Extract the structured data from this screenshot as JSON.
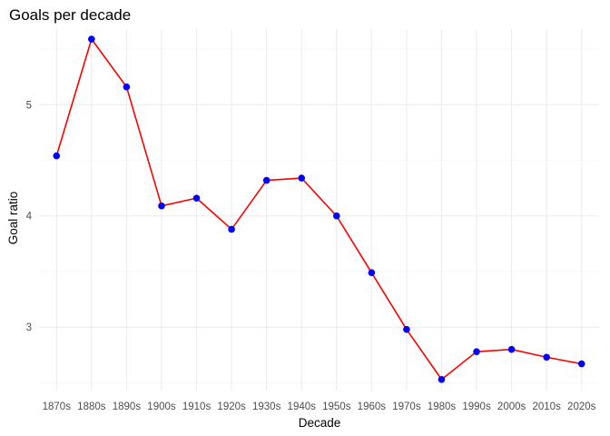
{
  "chart_data": {
    "type": "line",
    "title": "Goals per decade",
    "xlabel": "Decade",
    "ylabel": "Goal ratio",
    "categories": [
      "1870s",
      "1880s",
      "1890s",
      "1900s",
      "1910s",
      "1920s",
      "1930s",
      "1940s",
      "1950s",
      "1960s",
      "1970s",
      "1980s",
      "1990s",
      "2000s",
      "2010s",
      "2020s"
    ],
    "series": [
      {
        "values": [
          4.54,
          5.59,
          5.16,
          4.09,
          4.16,
          3.88,
          4.32,
          4.34,
          4.0,
          3.49,
          2.98,
          2.53,
          2.78,
          2.8,
          2.73,
          2.67
        ]
      }
    ],
    "ylim": [
      2.43,
      5.68
    ],
    "yticks": [
      3,
      4,
      5
    ],
    "grid": true,
    "legend": "none",
    "colors": {
      "line": "#ff0000",
      "point": "#0000ff",
      "grid": "#ebebeb"
    }
  }
}
